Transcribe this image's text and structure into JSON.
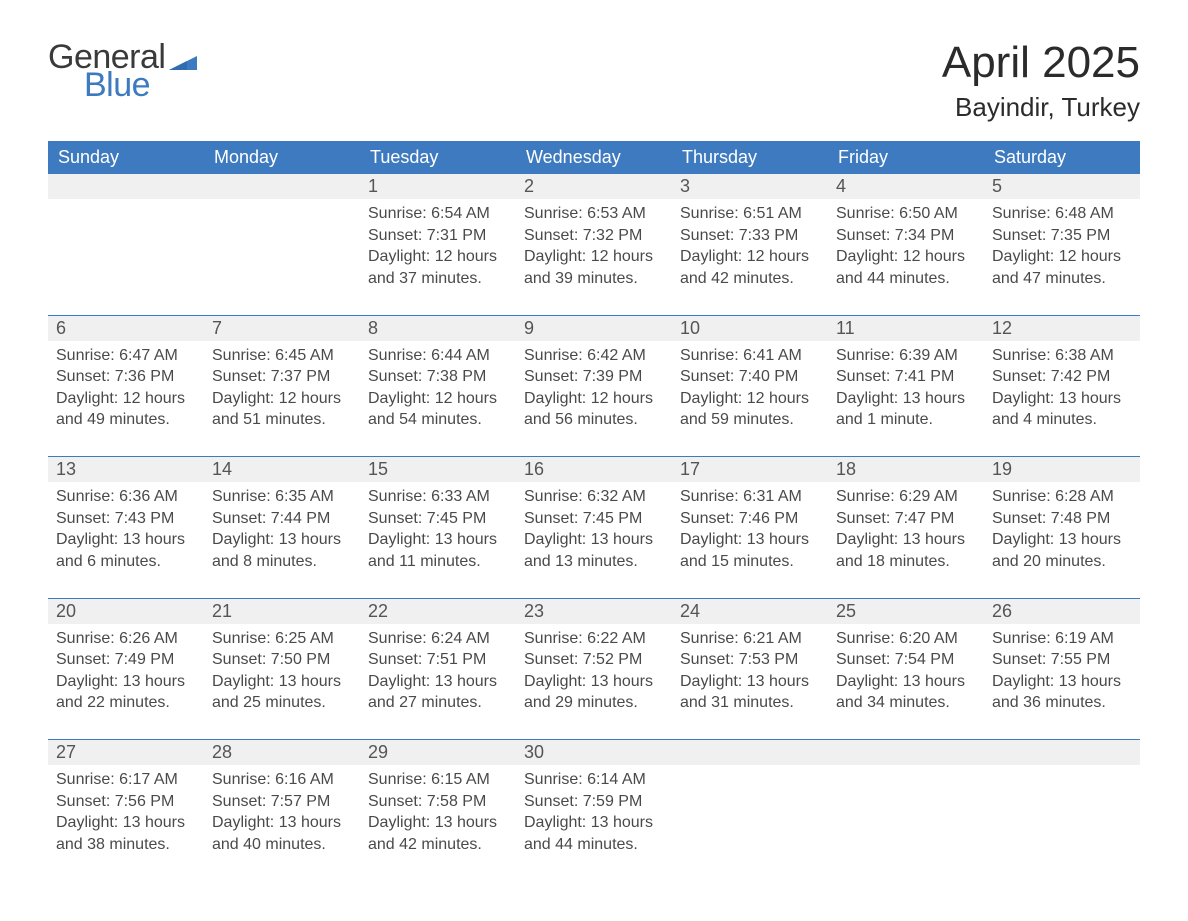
{
  "brand": {
    "word1": "General",
    "word2": "Blue",
    "flag_color": "#3e7abf"
  },
  "header": {
    "month_year": "April 2025",
    "location": "Bayindir, Turkey"
  },
  "theme": {
    "accent": "#3e7abf",
    "stripe": "#f0f0f0",
    "text": "#333333",
    "text_muted": "#4a4a4a",
    "header_text": "#ffffff",
    "rule": "#3e7abf",
    "background": "#ffffff",
    "title_fontsize_pt": 33,
    "location_fontsize_pt": 20,
    "weekday_fontsize_pt": 14,
    "daynum_fontsize_pt": 14,
    "body_fontsize_pt": 12
  },
  "calendar": {
    "type": "table",
    "columns": [
      "Sunday",
      "Monday",
      "Tuesday",
      "Wednesday",
      "Thursday",
      "Friday",
      "Saturday"
    ],
    "weeks": [
      [
        null,
        null,
        {
          "n": "1",
          "sr": "Sunrise: 6:54 AM",
          "ss": "Sunset: 7:31 PM",
          "d1": "Daylight: 12 hours",
          "d2": "and 37 minutes."
        },
        {
          "n": "2",
          "sr": "Sunrise: 6:53 AM",
          "ss": "Sunset: 7:32 PM",
          "d1": "Daylight: 12 hours",
          "d2": "and 39 minutes."
        },
        {
          "n": "3",
          "sr": "Sunrise: 6:51 AM",
          "ss": "Sunset: 7:33 PM",
          "d1": "Daylight: 12 hours",
          "d2": "and 42 minutes."
        },
        {
          "n": "4",
          "sr": "Sunrise: 6:50 AM",
          "ss": "Sunset: 7:34 PM",
          "d1": "Daylight: 12 hours",
          "d2": "and 44 minutes."
        },
        {
          "n": "5",
          "sr": "Sunrise: 6:48 AM",
          "ss": "Sunset: 7:35 PM",
          "d1": "Daylight: 12 hours",
          "d2": "and 47 minutes."
        }
      ],
      [
        {
          "n": "6",
          "sr": "Sunrise: 6:47 AM",
          "ss": "Sunset: 7:36 PM",
          "d1": "Daylight: 12 hours",
          "d2": "and 49 minutes."
        },
        {
          "n": "7",
          "sr": "Sunrise: 6:45 AM",
          "ss": "Sunset: 7:37 PM",
          "d1": "Daylight: 12 hours",
          "d2": "and 51 minutes."
        },
        {
          "n": "8",
          "sr": "Sunrise: 6:44 AM",
          "ss": "Sunset: 7:38 PM",
          "d1": "Daylight: 12 hours",
          "d2": "and 54 minutes."
        },
        {
          "n": "9",
          "sr": "Sunrise: 6:42 AM",
          "ss": "Sunset: 7:39 PM",
          "d1": "Daylight: 12 hours",
          "d2": "and 56 minutes."
        },
        {
          "n": "10",
          "sr": "Sunrise: 6:41 AM",
          "ss": "Sunset: 7:40 PM",
          "d1": "Daylight: 12 hours",
          "d2": "and 59 minutes."
        },
        {
          "n": "11",
          "sr": "Sunrise: 6:39 AM",
          "ss": "Sunset: 7:41 PM",
          "d1": "Daylight: 13 hours",
          "d2": "and 1 minute."
        },
        {
          "n": "12",
          "sr": "Sunrise: 6:38 AM",
          "ss": "Sunset: 7:42 PM",
          "d1": "Daylight: 13 hours",
          "d2": "and 4 minutes."
        }
      ],
      [
        {
          "n": "13",
          "sr": "Sunrise: 6:36 AM",
          "ss": "Sunset: 7:43 PM",
          "d1": "Daylight: 13 hours",
          "d2": "and 6 minutes."
        },
        {
          "n": "14",
          "sr": "Sunrise: 6:35 AM",
          "ss": "Sunset: 7:44 PM",
          "d1": "Daylight: 13 hours",
          "d2": "and 8 minutes."
        },
        {
          "n": "15",
          "sr": "Sunrise: 6:33 AM",
          "ss": "Sunset: 7:45 PM",
          "d1": "Daylight: 13 hours",
          "d2": "and 11 minutes."
        },
        {
          "n": "16",
          "sr": "Sunrise: 6:32 AM",
          "ss": "Sunset: 7:45 PM",
          "d1": "Daylight: 13 hours",
          "d2": "and 13 minutes."
        },
        {
          "n": "17",
          "sr": "Sunrise: 6:31 AM",
          "ss": "Sunset: 7:46 PM",
          "d1": "Daylight: 13 hours",
          "d2": "and 15 minutes."
        },
        {
          "n": "18",
          "sr": "Sunrise: 6:29 AM",
          "ss": "Sunset: 7:47 PM",
          "d1": "Daylight: 13 hours",
          "d2": "and 18 minutes."
        },
        {
          "n": "19",
          "sr": "Sunrise: 6:28 AM",
          "ss": "Sunset: 7:48 PM",
          "d1": "Daylight: 13 hours",
          "d2": "and 20 minutes."
        }
      ],
      [
        {
          "n": "20",
          "sr": "Sunrise: 6:26 AM",
          "ss": "Sunset: 7:49 PM",
          "d1": "Daylight: 13 hours",
          "d2": "and 22 minutes."
        },
        {
          "n": "21",
          "sr": "Sunrise: 6:25 AM",
          "ss": "Sunset: 7:50 PM",
          "d1": "Daylight: 13 hours",
          "d2": "and 25 minutes."
        },
        {
          "n": "22",
          "sr": "Sunrise: 6:24 AM",
          "ss": "Sunset: 7:51 PM",
          "d1": "Daylight: 13 hours",
          "d2": "and 27 minutes."
        },
        {
          "n": "23",
          "sr": "Sunrise: 6:22 AM",
          "ss": "Sunset: 7:52 PM",
          "d1": "Daylight: 13 hours",
          "d2": "and 29 minutes."
        },
        {
          "n": "24",
          "sr": "Sunrise: 6:21 AM",
          "ss": "Sunset: 7:53 PM",
          "d1": "Daylight: 13 hours",
          "d2": "and 31 minutes."
        },
        {
          "n": "25",
          "sr": "Sunrise: 6:20 AM",
          "ss": "Sunset: 7:54 PM",
          "d1": "Daylight: 13 hours",
          "d2": "and 34 minutes."
        },
        {
          "n": "26",
          "sr": "Sunrise: 6:19 AM",
          "ss": "Sunset: 7:55 PM",
          "d1": "Daylight: 13 hours",
          "d2": "and 36 minutes."
        }
      ],
      [
        {
          "n": "27",
          "sr": "Sunrise: 6:17 AM",
          "ss": "Sunset: 7:56 PM",
          "d1": "Daylight: 13 hours",
          "d2": "and 38 minutes."
        },
        {
          "n": "28",
          "sr": "Sunrise: 6:16 AM",
          "ss": "Sunset: 7:57 PM",
          "d1": "Daylight: 13 hours",
          "d2": "and 40 minutes."
        },
        {
          "n": "29",
          "sr": "Sunrise: 6:15 AM",
          "ss": "Sunset: 7:58 PM",
          "d1": "Daylight: 13 hours",
          "d2": "and 42 minutes."
        },
        {
          "n": "30",
          "sr": "Sunrise: 6:14 AM",
          "ss": "Sunset: 7:59 PM",
          "d1": "Daylight: 13 hours",
          "d2": "and 44 minutes."
        },
        null,
        null,
        null
      ]
    ]
  }
}
